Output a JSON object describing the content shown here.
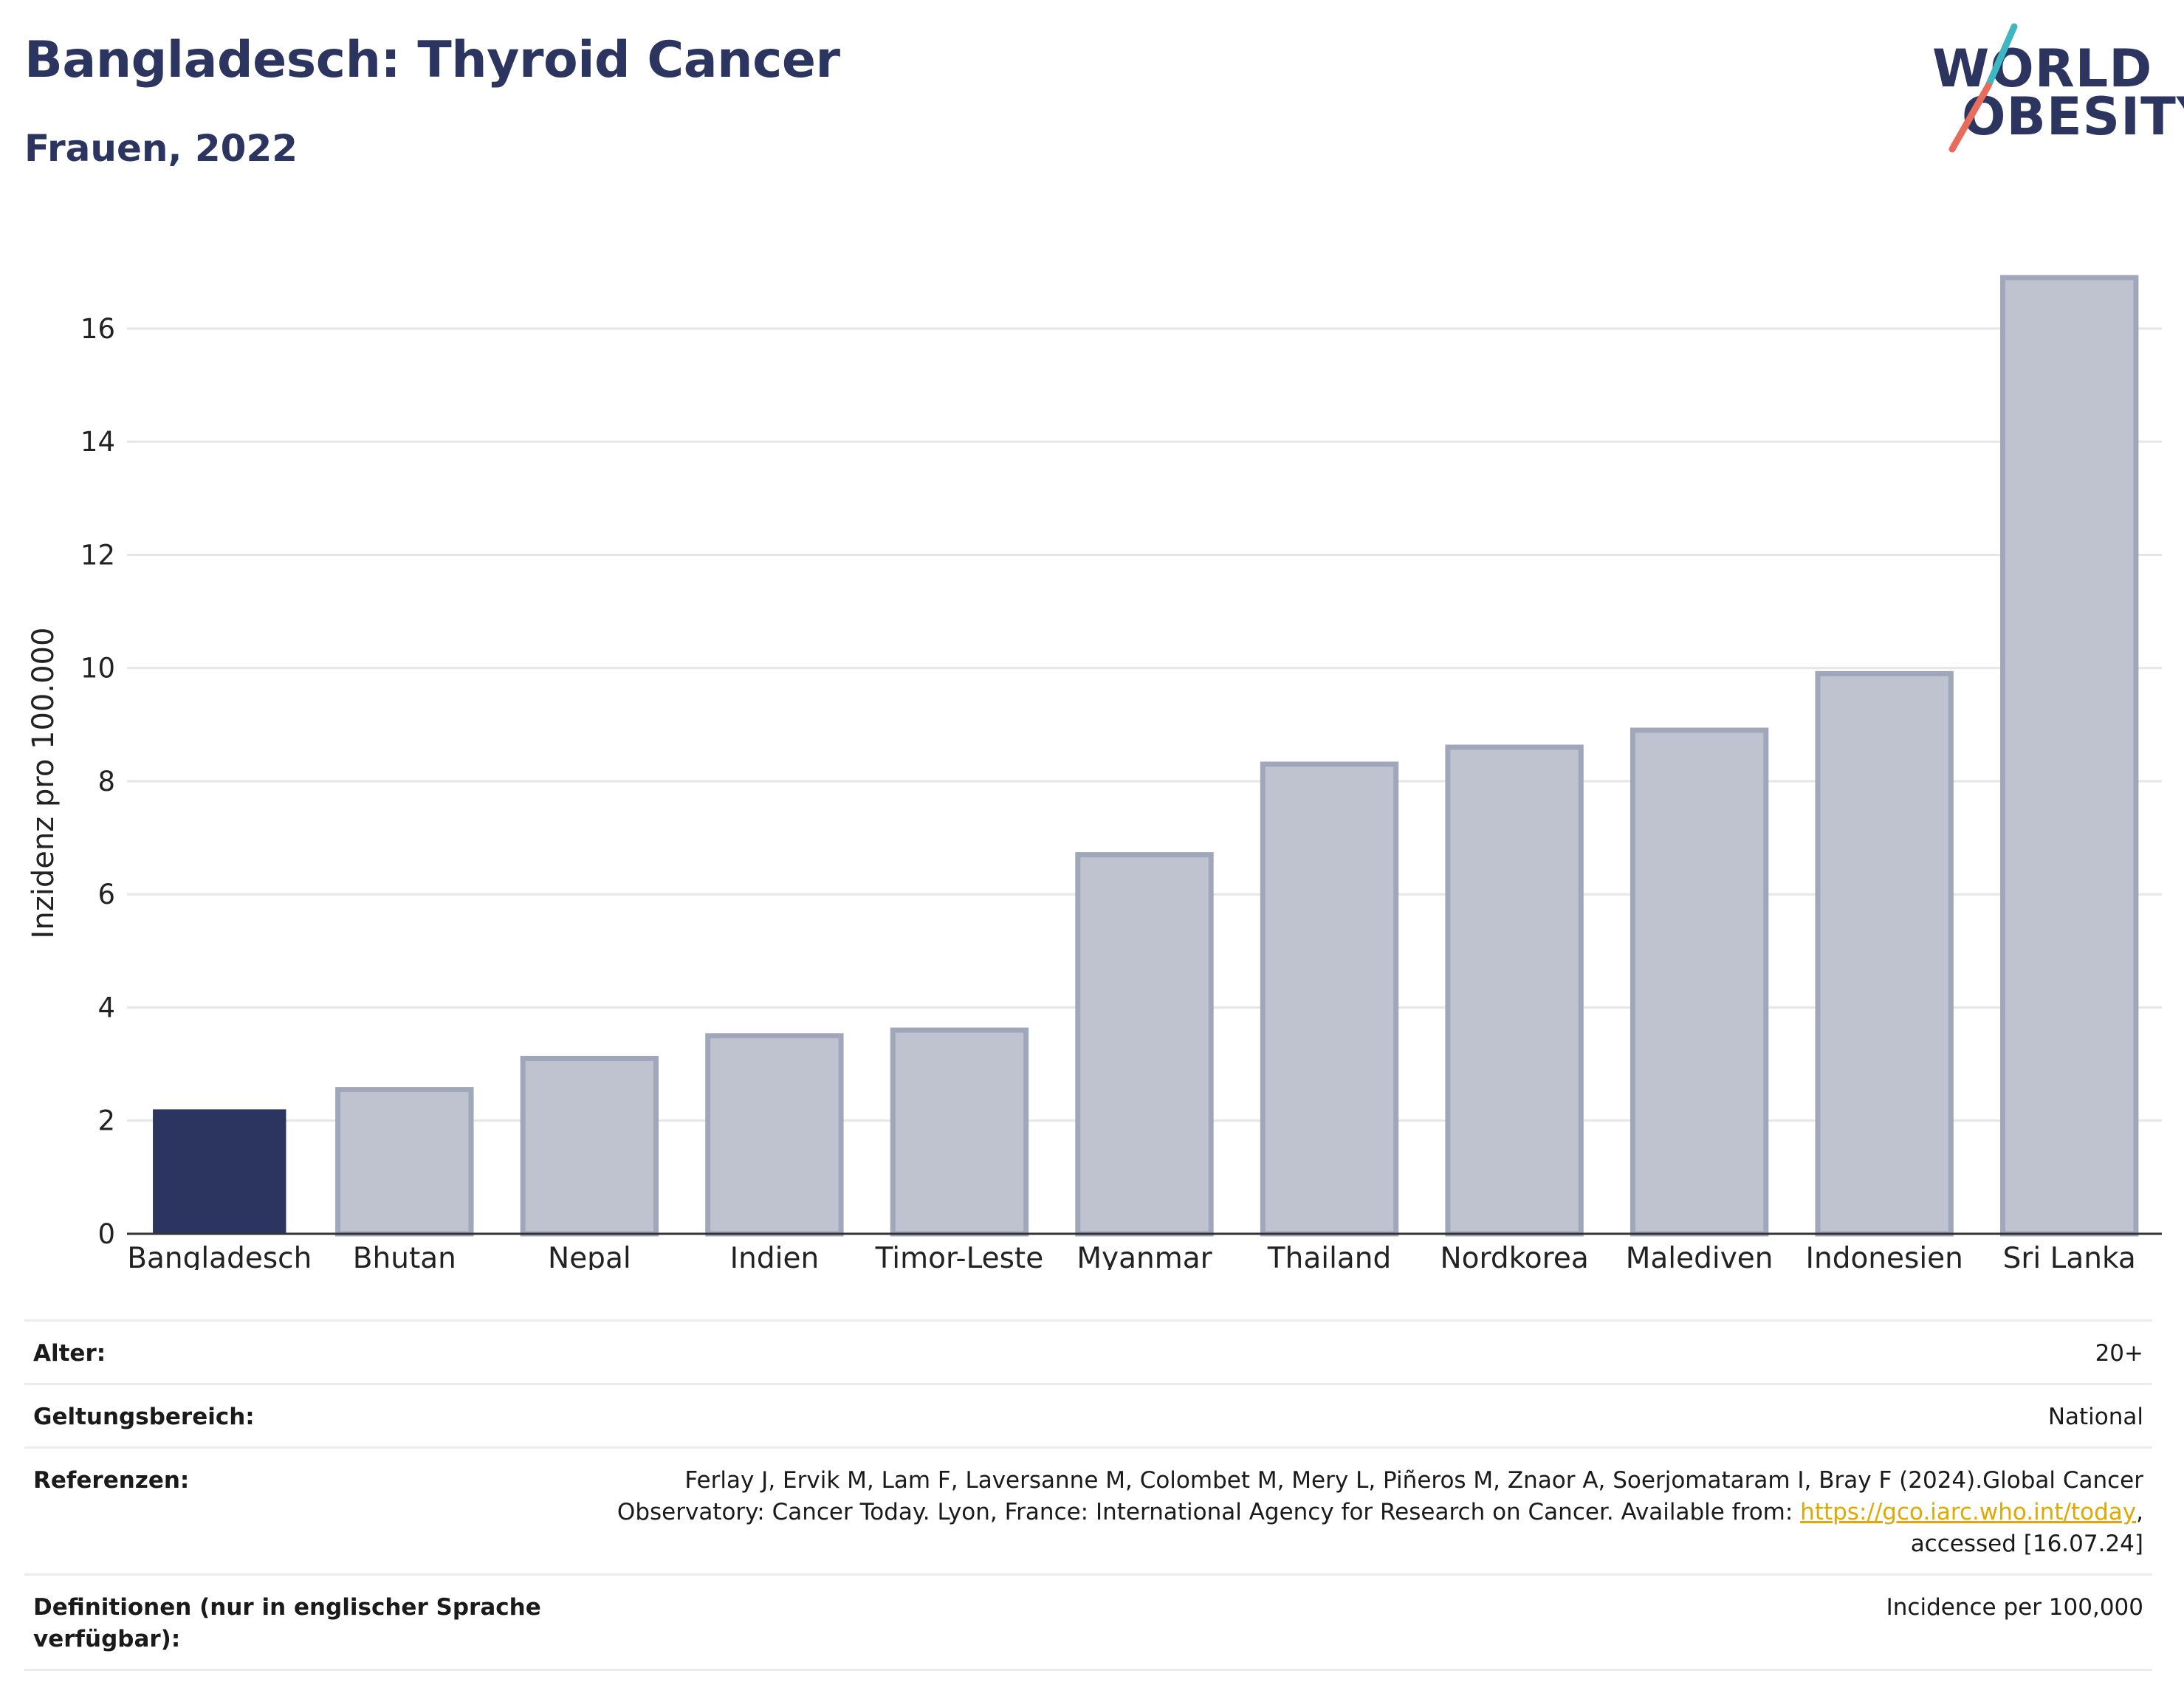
{
  "header": {
    "title": "Bangladesch: Thyroid Cancer",
    "subtitle": "Frauen, 2022"
  },
  "logo": {
    "line1": "WORLD",
    "line2": "OBESITY",
    "slash_colors": [
      "#3fb7c2",
      "#e86c5b"
    ]
  },
  "chart_data": {
    "type": "bar",
    "categories": [
      "Bangladesch",
      "Bhutan",
      "Nepal",
      "Indien",
      "Timor-Leste",
      "Myanmar",
      "Thailand",
      "Nordkorea",
      "Malediven",
      "Indonesien",
      "Sri Lanka"
    ],
    "values": [
      2.2,
      2.55,
      3.1,
      3.5,
      3.6,
      6.7,
      8.3,
      8.6,
      8.9,
      9.9,
      16.9
    ],
    "highlight_index": 0,
    "title": "",
    "xlabel": "",
    "ylabel": "Inzidenz pro 100.000",
    "ylim": [
      0,
      17.5
    ],
    "yticks": [
      0,
      2,
      4,
      6,
      8,
      10,
      12,
      14,
      16
    ],
    "grid": true,
    "colors": {
      "highlight": "#2b3560",
      "bar_fill": "#bfc3d0",
      "bar_stroke": "#a1a7bb",
      "grid": "#e6e6e6",
      "axis": "#333333"
    }
  },
  "info": {
    "age_label": "Alter:",
    "age_value": "20+",
    "scope_label": "Geltungsbereich:",
    "scope_value": "National",
    "refs_label": "Referenzen:",
    "refs_text_1": "Ferlay J, Ervik M, Lam F, Laversanne M, Colombet M, Mery L, Piñeros M, Znaor A, Soerjomataram I, Bray F (2024).Global Cancer",
    "refs_text_2": "Observatory: Cancer Today. Lyon, France: International Agency for Research on Cancer. Available from: ",
    "refs_link": "https://gco.iarc.who.int/today",
    "refs_text_3": ",",
    "refs_text_4": "accessed [16.07.24]",
    "defs_label": "Definitionen (nur in englischer Sprache verfügbar):",
    "defs_value": "Incidence per 100,000"
  }
}
